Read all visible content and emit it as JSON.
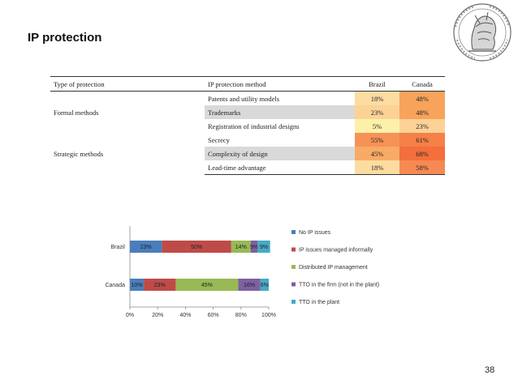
{
  "slide": {
    "title": "IP protection",
    "page_number": "38"
  },
  "table": {
    "headers": [
      "Type of protection",
      "IP protection method",
      "Brazil",
      "Canada"
    ],
    "groups": [
      {
        "type": "Formal methods",
        "rows": [
          {
            "method": "Patents and utility models",
            "brazil": "18%",
            "canada": "48%",
            "brazil_color": "#fcdca0",
            "canada_color": "#f7a35c"
          },
          {
            "method": "Trademarks",
            "brazil": "23%",
            "canada": "48%",
            "brazil_color": "#fcd297",
            "canada_color": "#f7a35c"
          },
          {
            "method": "Registration of industrial designs",
            "brazil": "5%",
            "canada": "23%",
            "brazil_color": "#fdf1a9",
            "canada_color": "#fcd297"
          }
        ]
      },
      {
        "type": "Strategic methods",
        "rows": [
          {
            "method": "Secrecy",
            "brazil": "55%",
            "canada": "61%",
            "brazil_color": "#f79257",
            "canada_color": "#f58048"
          },
          {
            "method": "Complexity of design",
            "brazil": "45%",
            "canada": "68%",
            "brazil_color": "#f8ab66",
            "canada_color": "#f36f3c"
          },
          {
            "method": "Lead-time advantage",
            "brazil": "18%",
            "canada": "58%",
            "brazil_color": "#fcdca0",
            "canada_color": "#f68a52"
          }
        ]
      }
    ]
  },
  "chart_data": {
    "type": "bar",
    "orientation": "horizontal",
    "stacked": "100%",
    "categories": [
      "Brazil",
      "Canada"
    ],
    "series": [
      {
        "name": "No IP issues",
        "color": "#4a7ebb",
        "values": [
          23,
          10
        ],
        "labels": [
          "23%",
          "10%"
        ]
      },
      {
        "name": "IP issues managed informally",
        "color": "#be4b48",
        "values": [
          50,
          23
        ],
        "labels": [
          "50%",
          "23%"
        ]
      },
      {
        "name": "Distributed IP management",
        "color": "#98b954",
        "values": [
          14,
          45
        ],
        "labels": [
          "14%",
          "45%"
        ]
      },
      {
        "name": "TTO in the firm (not in the plant)",
        "color": "#7d60a0",
        "values": [
          5,
          16
        ],
        "labels": [
          "5%",
          "16%"
        ]
      },
      {
        "name": "TTO in the plant",
        "color": "#46aac4",
        "values": [
          9,
          6
        ],
        "labels": [
          "9%",
          "6%"
        ]
      }
    ],
    "x_ticks": [
      "0%",
      "20%",
      "40%",
      "60%",
      "80%",
      "100%"
    ],
    "xlim": [
      0,
      100
    ],
    "legend_position": "right"
  }
}
